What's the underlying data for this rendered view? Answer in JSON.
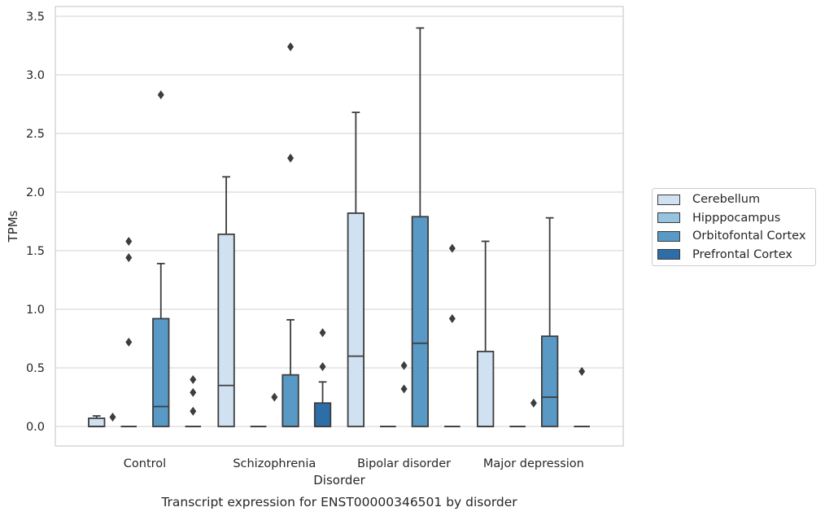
{
  "chart_data": {
    "type": "box",
    "caption": "Transcript expression for ENST00000346501 by disorder",
    "xlabel": "Disorder",
    "ylabel": "TPMs",
    "ylim": [
      -0.17,
      3.57
    ],
    "yticks": [
      0.0,
      0.5,
      1.0,
      1.5,
      2.0,
      2.5,
      3.0,
      3.5
    ],
    "ytick_labels": [
      "0.0",
      "0.5",
      "1.0",
      "1.5",
      "2.0",
      "2.5",
      "3.0",
      "3.5"
    ],
    "grid": "horizontal",
    "legend_position": "right",
    "categories": [
      "Control",
      "Schizophrenia",
      "Bipolar disorder",
      "Major depression"
    ],
    "series": [
      {
        "name": "Cerebellum",
        "color": "#d0e1f2",
        "boxes": [
          {
            "q1": 0.0,
            "median": 0.0,
            "q3": 0.07,
            "whisker_low": 0.0,
            "whisker_high": 0.09,
            "fliers": []
          },
          {
            "q1": 0.0,
            "median": 0.35,
            "q3": 1.64,
            "whisker_low": 0.0,
            "whisker_high": 2.13,
            "fliers": []
          },
          {
            "q1": 0.0,
            "median": 0.6,
            "q3": 1.82,
            "whisker_low": 0.0,
            "whisker_high": 2.68,
            "fliers": []
          },
          {
            "q1": 0.0,
            "median": 0.0,
            "q3": 0.64,
            "whisker_low": 0.0,
            "whisker_high": 1.58,
            "fliers": []
          }
        ]
      },
      {
        "name": "Hipppocampus",
        "color": "#94c4df",
        "boxes": [
          {
            "q1": 0.0,
            "median": 0.0,
            "q3": 0.0,
            "whisker_low": 0.0,
            "whisker_high": 0.0,
            "fliers": [
              1.58,
              1.44,
              0.72
            ]
          },
          {
            "q1": 0.0,
            "median": 0.0,
            "q3": 0.0,
            "whisker_low": 0.0,
            "whisker_high": 0.0,
            "fliers": []
          },
          {
            "q1": 0.0,
            "median": 0.0,
            "q3": 0.0,
            "whisker_low": 0.0,
            "whisker_high": 0.0,
            "fliers": []
          },
          {
            "q1": 0.0,
            "median": 0.0,
            "q3": 0.0,
            "whisker_low": 0.0,
            "whisker_high": 0.0,
            "fliers": []
          }
        ]
      },
      {
        "name": "Orbitofontal Cortex",
        "color": "#5899c5",
        "boxes": [
          {
            "q1": 0.0,
            "median": 0.17,
            "q3": 0.92,
            "whisker_low": 0.0,
            "whisker_high": 1.39,
            "fliers": [
              2.83
            ]
          },
          {
            "q1": 0.0,
            "median": 0.0,
            "q3": 0.44,
            "whisker_low": 0.0,
            "whisker_high": 0.91,
            "fliers": [
              3.24,
              2.29
            ]
          },
          {
            "q1": 0.0,
            "median": 0.71,
            "q3": 1.79,
            "whisker_low": 0.0,
            "whisker_high": 3.4,
            "fliers": []
          },
          {
            "q1": 0.0,
            "median": 0.25,
            "q3": 0.77,
            "whisker_low": 0.0,
            "whisker_high": 1.78,
            "fliers": []
          }
        ]
      },
      {
        "name": "Prefrontal Cortex",
        "color": "#2d6ea8",
        "boxes": [
          {
            "q1": 0.0,
            "median": 0.0,
            "q3": 0.0,
            "whisker_low": 0.0,
            "whisker_high": 0.0,
            "fliers": [
              0.4,
              0.29,
              0.13
            ]
          },
          {
            "q1": 0.0,
            "median": 0.0,
            "q3": 0.2,
            "whisker_low": 0.0,
            "whisker_high": 0.38,
            "fliers": [
              0.8,
              0.51
            ]
          },
          {
            "q1": 0.0,
            "median": 0.0,
            "q3": 0.0,
            "whisker_low": 0.0,
            "whisker_high": 0.0,
            "fliers": [
              1.52,
              0.92
            ]
          },
          {
            "q1": 0.0,
            "median": 0.0,
            "q3": 0.0,
            "whisker_low": 0.0,
            "whisker_high": 0.0,
            "fliers": [
              0.47
            ]
          }
        ]
      }
    ],
    "between_series_fliers": [
      {
        "category": "Control",
        "after_series": "Cerebellum",
        "values": [
          0.08
        ]
      },
      {
        "category": "Schizophrenia",
        "after_series": "Hipppocampus",
        "values": [
          0.25
        ]
      },
      {
        "category": "Bipolar disorder",
        "after_series": "Hipppocampus",
        "values": [
          0.52,
          0.32
        ]
      },
      {
        "category": "Major depression",
        "after_series": "Hipppocampus",
        "values": [
          0.2
        ]
      }
    ]
  }
}
